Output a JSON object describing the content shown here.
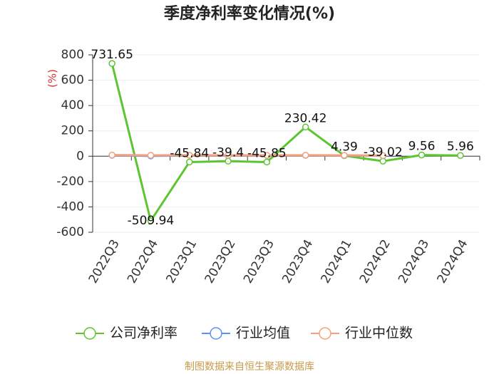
{
  "chart_data": {
    "type": "line",
    "title": "季度净利率变化情况(%)",
    "ylabel": "(%)",
    "source": "制图数据来自恒生聚源数据库",
    "categories": [
      "2022Q3",
      "2022Q4",
      "2023Q1",
      "2023Q2",
      "2023Q3",
      "2023Q4",
      "2024Q1",
      "2024Q2",
      "2024Q3",
      "2024Q4"
    ],
    "series": [
      {
        "name": "公司净利率",
        "color": "#5cc530",
        "values": [
          731.65,
          -509.94,
          -45.84,
          -39.4,
          -45.85,
          230.42,
          4.39,
          -39.02,
          9.56,
          5.96
        ],
        "show_labels": true
      },
      {
        "name": "行业均值",
        "color": "#5b8ff9",
        "values": [
          8,
          2,
          7,
          6,
          6,
          7,
          6,
          4,
          null,
          null
        ]
      },
      {
        "name": "行业中位数",
        "color": "#f4a07a",
        "values": [
          9,
          7,
          8,
          7,
          7,
          8,
          7,
          5,
          null,
          null
        ]
      }
    ],
    "ylim": [
      -600,
      800
    ],
    "yticks": [
      -600,
      -400,
      -200,
      0,
      200,
      400,
      600,
      800
    ],
    "grid": true
  }
}
